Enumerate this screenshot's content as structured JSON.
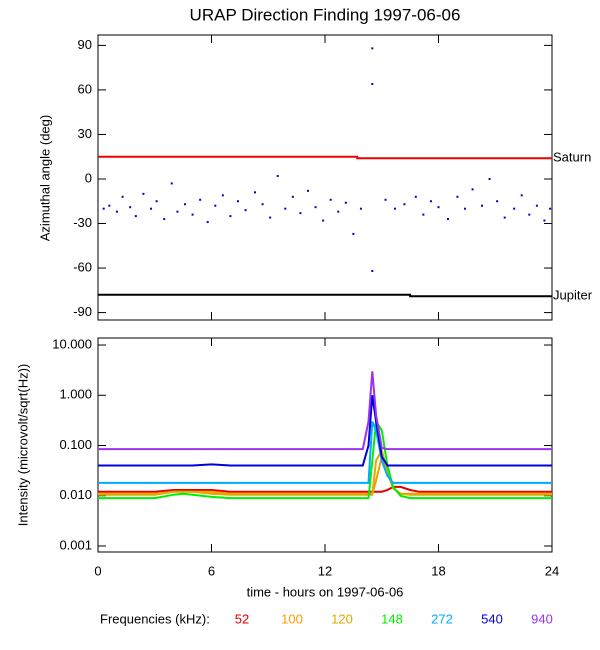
{
  "chart_data": [
    {
      "type": "scatter",
      "title": "URAP Direction Finding  1997-06-06",
      "ylabel": "Azimuthal angle (deg)",
      "xlim": [
        0,
        24
      ],
      "xticks": [
        0,
        6,
        12,
        18,
        24
      ],
      "ylim": [
        -95,
        97
      ],
      "yticks": [
        90,
        60,
        30,
        0,
        -30,
        -60,
        -90
      ],
      "series": [
        {
          "kind": "points",
          "color": "#0000cc",
          "x": [
            0.3,
            0.6,
            1.0,
            1.3,
            1.7,
            2.0,
            2.4,
            2.8,
            3.1,
            3.5,
            3.9,
            4.2,
            4.6,
            5.0,
            5.4,
            5.8,
            6.2,
            6.6,
            7.0,
            7.4,
            7.8,
            8.3,
            8.7,
            9.1,
            9.5,
            9.9,
            10.3,
            10.7,
            11.1,
            11.5,
            11.9,
            12.3,
            12.7,
            13.1,
            13.5,
            13.9,
            14.5,
            14.5,
            14.5,
            15.2,
            15.7,
            16.2,
            16.8,
            17.2,
            17.6,
            18.0,
            18.5,
            19.0,
            19.4,
            19.8,
            20.3,
            20.7,
            21.1,
            21.5,
            22.0,
            22.4,
            22.8,
            23.2,
            23.6,
            23.9
          ],
          "values": [
            -20,
            -18,
            -22,
            -12,
            -19,
            -25,
            -10,
            -20,
            -15,
            -27,
            -3,
            -22,
            -17,
            -24,
            -14,
            -29,
            -18,
            -11,
            -25,
            -15,
            -21,
            -9,
            -17,
            -26,
            2,
            -20,
            -12,
            -23,
            -8,
            -19,
            -28,
            -14,
            -22,
            -16,
            -37,
            -20,
            88,
            64,
            -62,
            -14,
            -20,
            -17,
            -12,
            -24,
            -15,
            -19,
            -27,
            -12,
            -20,
            -7,
            -18,
            0,
            -15,
            -26,
            -20,
            -11,
            -24,
            -18,
            -28,
            -20
          ]
        },
        {
          "kind": "line",
          "name": "Saturn",
          "color": "#ee0000",
          "x": [
            0,
            13.7,
            13.7,
            24
          ],
          "values": [
            15,
            15,
            14,
            14
          ]
        },
        {
          "kind": "line",
          "name": "Jupiter",
          "color": "#000000",
          "x": [
            0,
            16.5,
            16.5,
            24
          ],
          "values": [
            -78,
            -78,
            -79,
            -79
          ]
        }
      ]
    },
    {
      "type": "line",
      "log": true,
      "xlabel": "time - hours on 1997-06-06",
      "ylabel": "Intensity (microvolt/sqrt(Hz))",
      "legend_title": "Frequencies (kHz):",
      "xlim": [
        0,
        24
      ],
      "xticks": [
        0,
        6,
        12,
        18,
        24
      ],
      "ylim": [
        0.00076,
        13.8
      ],
      "yticks": [
        {
          "value": 10,
          "label": "10.000"
        },
        {
          "value": 1,
          "label": "1.000"
        },
        {
          "value": 0.1,
          "label": "0.100"
        },
        {
          "value": 0.01,
          "label": "0.010"
        },
        {
          "value": 0.001,
          "label": "0.001"
        }
      ],
      "x": [
        0,
        1,
        2,
        3,
        4,
        4.5,
        5,
        6,
        7,
        8,
        9,
        10,
        11,
        12,
        13,
        14,
        14.3,
        14.5,
        14.7,
        15,
        15.3,
        15.6,
        16,
        16.5,
        17,
        18,
        19,
        20,
        21,
        22,
        23,
        24
      ],
      "series": [
        {
          "name": "52",
          "color": "#e00000",
          "values": [
            0.012,
            0.012,
            0.012,
            0.012,
            0.013,
            0.013,
            0.013,
            0.013,
            0.012,
            0.012,
            0.012,
            0.012,
            0.012,
            0.012,
            0.012,
            0.012,
            0.012,
            0.012,
            0.012,
            0.012,
            0.013,
            0.015,
            0.015,
            0.013,
            0.012,
            0.012,
            0.012,
            0.012,
            0.012,
            0.012,
            0.012,
            0.012
          ]
        },
        {
          "name": "100",
          "color": "#ff9900",
          "values": [
            0.011,
            0.011,
            0.011,
            0.011,
            0.012,
            0.012,
            0.012,
            0.012,
            0.011,
            0.011,
            0.011,
            0.011,
            0.011,
            0.011,
            0.011,
            0.011,
            0.011,
            0.011,
            0.02,
            0.06,
            0.03,
            0.014,
            0.011,
            0.011,
            0.011,
            0.011,
            0.011,
            0.011,
            0.011,
            0.011,
            0.011,
            0.011
          ]
        },
        {
          "name": "120",
          "color": "#ddaa00",
          "values": [
            0.0105,
            0.0105,
            0.0105,
            0.0105,
            0.012,
            0.012,
            0.012,
            0.011,
            0.0105,
            0.0105,
            0.0105,
            0.0105,
            0.0105,
            0.0105,
            0.0105,
            0.0105,
            0.0105,
            0.0105,
            0.05,
            0.08,
            0.03,
            0.014,
            0.011,
            0.0105,
            0.0105,
            0.0105,
            0.0105,
            0.0105,
            0.0105,
            0.0105,
            0.0105,
            0.0105
          ]
        },
        {
          "name": "148",
          "color": "#00ee00",
          "values": [
            0.009,
            0.009,
            0.009,
            0.009,
            0.0105,
            0.011,
            0.0105,
            0.0095,
            0.009,
            0.009,
            0.009,
            0.009,
            0.009,
            0.009,
            0.009,
            0.009,
            0.009,
            0.05,
            0.3,
            0.2,
            0.04,
            0.015,
            0.01,
            0.009,
            0.009,
            0.009,
            0.009,
            0.009,
            0.009,
            0.009,
            0.009,
            0.009
          ]
        },
        {
          "name": "272",
          "color": "#00aaff",
          "values": [
            0.018,
            0.018,
            0.018,
            0.018,
            0.018,
            0.018,
            0.018,
            0.018,
            0.018,
            0.018,
            0.018,
            0.018,
            0.018,
            0.018,
            0.018,
            0.018,
            0.018,
            0.3,
            0.2,
            0.05,
            0.025,
            0.018,
            0.018,
            0.018,
            0.018,
            0.018,
            0.018,
            0.018,
            0.018,
            0.018,
            0.018,
            0.018
          ]
        },
        {
          "name": "540",
          "color": "#0000dd",
          "values": [
            0.04,
            0.04,
            0.04,
            0.04,
            0.04,
            0.04,
            0.04,
            0.042,
            0.04,
            0.04,
            0.04,
            0.04,
            0.04,
            0.04,
            0.04,
            0.04,
            0.1,
            1.0,
            0.3,
            0.06,
            0.04,
            0.04,
            0.04,
            0.04,
            0.04,
            0.04,
            0.04,
            0.04,
            0.04,
            0.04,
            0.04,
            0.04
          ]
        },
        {
          "name": "940",
          "color": "#9933ee",
          "values": [
            0.085,
            0.085,
            0.085,
            0.085,
            0.085,
            0.085,
            0.085,
            0.085,
            0.085,
            0.085,
            0.085,
            0.085,
            0.085,
            0.085,
            0.085,
            0.085,
            0.3,
            3.0,
            0.4,
            0.09,
            0.085,
            0.085,
            0.085,
            0.085,
            0.085,
            0.085,
            0.085,
            0.085,
            0.085,
            0.085,
            0.085,
            0.085
          ]
        }
      ]
    }
  ]
}
